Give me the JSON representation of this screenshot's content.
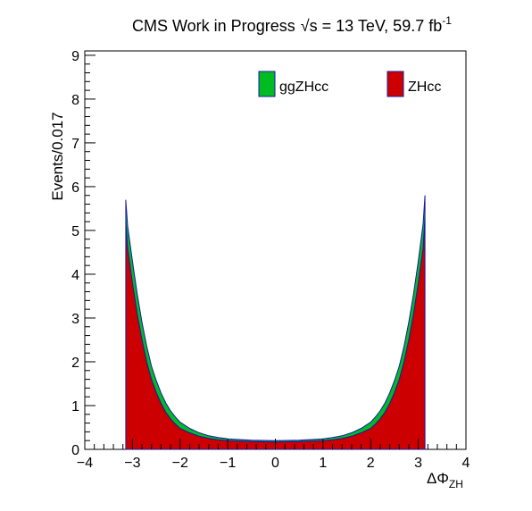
{
  "chart_data": {
    "type": "area",
    "title_prefix": "CMS Work in Progress",
    "title_sqrt": "√s",
    "title_suffix": " = 13 TeV, 59.7 fb",
    "title_sup": "-1",
    "ylabel": "Events/0.017",
    "xlabel_main": "ΔΦ",
    "xlabel_sub": "ZH",
    "xlim": [
      -4,
      4
    ],
    "ylim": [
      0,
      9.1
    ],
    "x_ticks": [
      -4,
      -3,
      -2,
      -1,
      0,
      1,
      2,
      3,
      4
    ],
    "y_ticks": [
      0,
      1,
      2,
      3,
      4,
      5,
      6,
      7,
      8,
      9
    ],
    "stacked": true,
    "x": [
      -3.14,
      -3.1,
      -3.0,
      -2.9,
      -2.8,
      -2.7,
      -2.6,
      -2.5,
      -2.4,
      -2.3,
      -2.2,
      -2.1,
      -2.0,
      -1.8,
      -1.6,
      -1.4,
      -1.2,
      -1.0,
      -0.5,
      0.0,
      0.5,
      1.0,
      1.2,
      1.4,
      1.6,
      1.8,
      2.0,
      2.1,
      2.2,
      2.3,
      2.4,
      2.5,
      2.6,
      2.7,
      2.8,
      2.9,
      3.0,
      3.1,
      3.14
    ],
    "series": [
      {
        "name": "ZHcc",
        "color": "#cc0000",
        "values": [
          5.2,
          4.6,
          3.8,
          3.1,
          2.5,
          2.0,
          1.6,
          1.3,
          1.05,
          0.85,
          0.7,
          0.58,
          0.48,
          0.38,
          0.3,
          0.25,
          0.22,
          0.2,
          0.18,
          0.17,
          0.18,
          0.2,
          0.22,
          0.25,
          0.3,
          0.38,
          0.48,
          0.58,
          0.7,
          0.85,
          1.05,
          1.3,
          1.6,
          2.0,
          2.5,
          3.1,
          3.8,
          4.6,
          5.3
        ]
      },
      {
        "name": "ggZHcc",
        "color": "#00bb22",
        "values": [
          0.5,
          0.5,
          0.5,
          0.45,
          0.4,
          0.35,
          0.3,
          0.27,
          0.24,
          0.21,
          0.18,
          0.16,
          0.14,
          0.1,
          0.08,
          0.06,
          0.05,
          0.04,
          0.03,
          0.03,
          0.03,
          0.04,
          0.05,
          0.06,
          0.08,
          0.1,
          0.14,
          0.16,
          0.18,
          0.21,
          0.24,
          0.27,
          0.3,
          0.35,
          0.4,
          0.45,
          0.5,
          0.55,
          0.5
        ]
      }
    ],
    "legend": [
      {
        "label": "ggZHcc",
        "color": "#00bb22"
      },
      {
        "label": "ZHcc",
        "color": "#cc0000"
      }
    ],
    "legend_position": "top",
    "grid": false
  }
}
